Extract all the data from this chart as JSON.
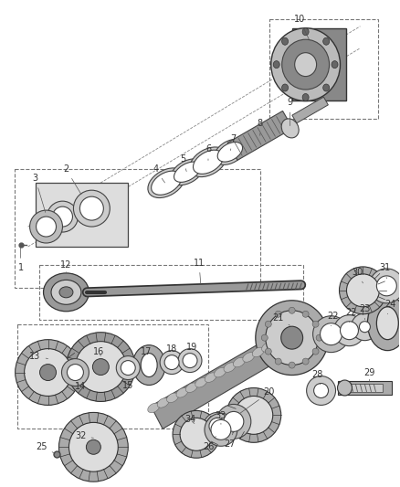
{
  "bg_color": "#ffffff",
  "line_color": "#222222",
  "label_color": "#333333",
  "label_fs": 7,
  "lw": 0.8
}
